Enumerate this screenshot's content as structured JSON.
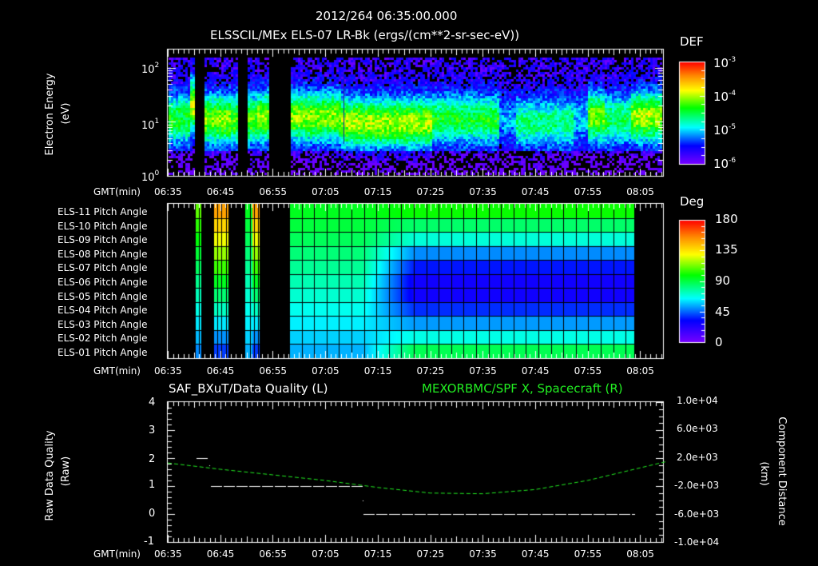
{
  "header": {
    "timestamp": "2012/264 06:35:00.000",
    "title": "ELSSCIL/MEx ELS-07 LR-Bk  (ergs/(cm**2-sr-sec-eV))"
  },
  "time_axis": {
    "label": "GMT(min)",
    "ticks": [
      "06:35",
      "06:45",
      "06:55",
      "07:05",
      "07:15",
      "07:25",
      "07:35",
      "07:45",
      "07:55",
      "08:05"
    ],
    "start_min": 395,
    "end_min": 490
  },
  "panel1": {
    "ylabel": "Electron Energy",
    "yunit": "(eV)",
    "yticks": [
      {
        "base": "10",
        "exp": "2"
      },
      {
        "base": "10",
        "exp": "1"
      },
      {
        "base": "10",
        "exp": "0"
      }
    ],
    "colorbar": {
      "label": "DEF",
      "ticks": [
        {
          "base": "10",
          "exp": "-3"
        },
        {
          "base": "10",
          "exp": "-4"
        },
        {
          "base": "10",
          "exp": "-5"
        },
        {
          "base": "10",
          "exp": "-6"
        }
      ]
    }
  },
  "panel2": {
    "rows": [
      "ELS-11 Pitch Angle",
      "ELS-10 Pitch Angle",
      "ELS-09 Pitch Angle",
      "ELS-08 Pitch Angle",
      "ELS-07 Pitch Angle",
      "ELS-06 Pitch Angle",
      "ELS-05 Pitch Angle",
      "ELS-04 Pitch Angle",
      "ELS-03 Pitch Angle",
      "ELS-02 Pitch Angle",
      "ELS-01 Pitch Angle"
    ],
    "colorbar": {
      "label": "Deg",
      "ticks": [
        "180",
        "135",
        "90",
        "45",
        "0"
      ]
    }
  },
  "panel3": {
    "left_title": "SAF_BXuT/Data Quality (L)",
    "right_title": "MEXORBMC/SPF X, Spacecraft (R)",
    "left_ylabel": "Raw Data Quality",
    "left_yunit": "(Raw)",
    "left_yticks": [
      "4",
      "3",
      "2",
      "1",
      "0",
      "-1"
    ],
    "right_ylabel": "Component Distance",
    "right_yunit": "(km)",
    "right_yticks": [
      "1.0e+04",
      "6.0e+03",
      "2.0e+03",
      "-2.0e+03",
      "-6.0e+03",
      "-1.0e+04"
    ]
  },
  "colors": {
    "series_right": "#22ee22",
    "series_left": "#ffffff",
    "background": "#000000"
  },
  "chart_data": [
    {
      "type": "heatmap",
      "title": "ELSSCIL/MEx ELS-07 LR-Bk (ergs/(cm**2-sr-sec-eV))",
      "xlabel": "GMT(min)",
      "ylabel": "Electron Energy (eV)",
      "yscale": "log",
      "ylim": [
        1,
        150
      ],
      "colorbar": {
        "label": "DEF",
        "scale": "log",
        "range": [
          1e-06,
          0.001
        ]
      },
      "data_gaps": [
        [
          "06:40",
          "06:42"
        ],
        [
          "06:47",
          "06:49"
        ],
        [
          "06:53",
          "06:58"
        ]
      ],
      "description": "Peak DEF ~1e-4 around 10-30 eV; strong flux 07:00-07:25; depleted 07:40-07:52; recovery 07:53-08:10"
    },
    {
      "type": "heatmap",
      "title": "ELS Pitch Angle",
      "xlabel": "GMT(min)",
      "categories": [
        "ELS-01",
        "ELS-02",
        "ELS-03",
        "ELS-04",
        "ELS-05",
        "ELS-06",
        "ELS-07",
        "ELS-08",
        "ELS-09",
        "ELS-10",
        "ELS-11"
      ],
      "colorbar": {
        "label": "Deg",
        "range": [
          0,
          180
        ]
      },
      "data_range": [
        "06:42",
        "08:05"
      ],
      "description": "Before 07:17 mostly 60-110 deg; after 07:20 ELS-01/11 ~100 deg, ELS-06/07 ~30 deg"
    },
    {
      "type": "line",
      "series": [
        {
          "name": "SAF_BXuT/Data Quality (L)",
          "axis": "left",
          "x": [
            "06:41",
            "06:44",
            "07:13",
            "07:14",
            "08:05"
          ],
          "values": [
            2,
            1,
            1,
            0,
            0
          ]
        },
        {
          "name": "MEXORBMC/SPF X, Spacecraft (R)",
          "axis": "right",
          "x": [
            "06:35",
            "06:45",
            "06:55",
            "07:05",
            "07:15",
            "07:25",
            "07:35",
            "07:45",
            "07:55",
            "08:05",
            "08:10"
          ],
          "values": [
            1300,
            400,
            -400,
            -1200,
            -2200,
            -3000,
            -3100,
            -2500,
            -1200,
            600,
            1500
          ]
        }
      ],
      "ylim_left": [
        -1,
        4
      ],
      "ylim_right": [
        -10000,
        10000
      ],
      "xlabel": "GMT(min)"
    }
  ]
}
